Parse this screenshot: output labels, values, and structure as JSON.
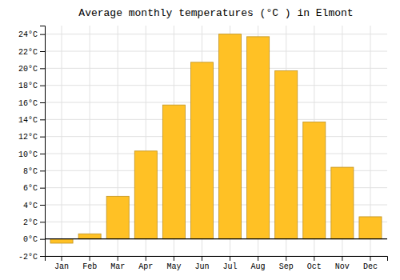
{
  "chart_data": {
    "type": "bar",
    "title": "Average monthly temperatures (°C ) in Elmont",
    "categories": [
      "Jan",
      "Feb",
      "Mar",
      "Apr",
      "May",
      "Jun",
      "Jul",
      "Aug",
      "Sep",
      "Oct",
      "Nov",
      "Dec"
    ],
    "values": [
      -0.5,
      0.6,
      5.0,
      10.3,
      15.7,
      20.7,
      24.0,
      23.7,
      19.7,
      13.7,
      8.4,
      2.6
    ],
    "color": "#FFC125",
    "ylim": [
      -2,
      25
    ],
    "yticks": [
      {
        "value": -2,
        "label": "-2°C"
      },
      {
        "value": 0,
        "label": "0°C"
      },
      {
        "value": 2,
        "label": "2°C"
      },
      {
        "value": 4,
        "label": "4°C"
      },
      {
        "value": 6,
        "label": "6°C"
      },
      {
        "value": 8,
        "label": "8°C"
      },
      {
        "value": 10,
        "label": "10°C"
      },
      {
        "value": 12,
        "label": "12°C"
      },
      {
        "value": 14,
        "label": "14°C"
      },
      {
        "value": 16,
        "label": "16°C"
      },
      {
        "value": 18,
        "label": "18°C"
      },
      {
        "value": 20,
        "label": "20°C"
      },
      {
        "value": 22,
        "label": "22°C"
      },
      {
        "value": 24,
        "label": "24°C"
      }
    ],
    "grid": true
  }
}
